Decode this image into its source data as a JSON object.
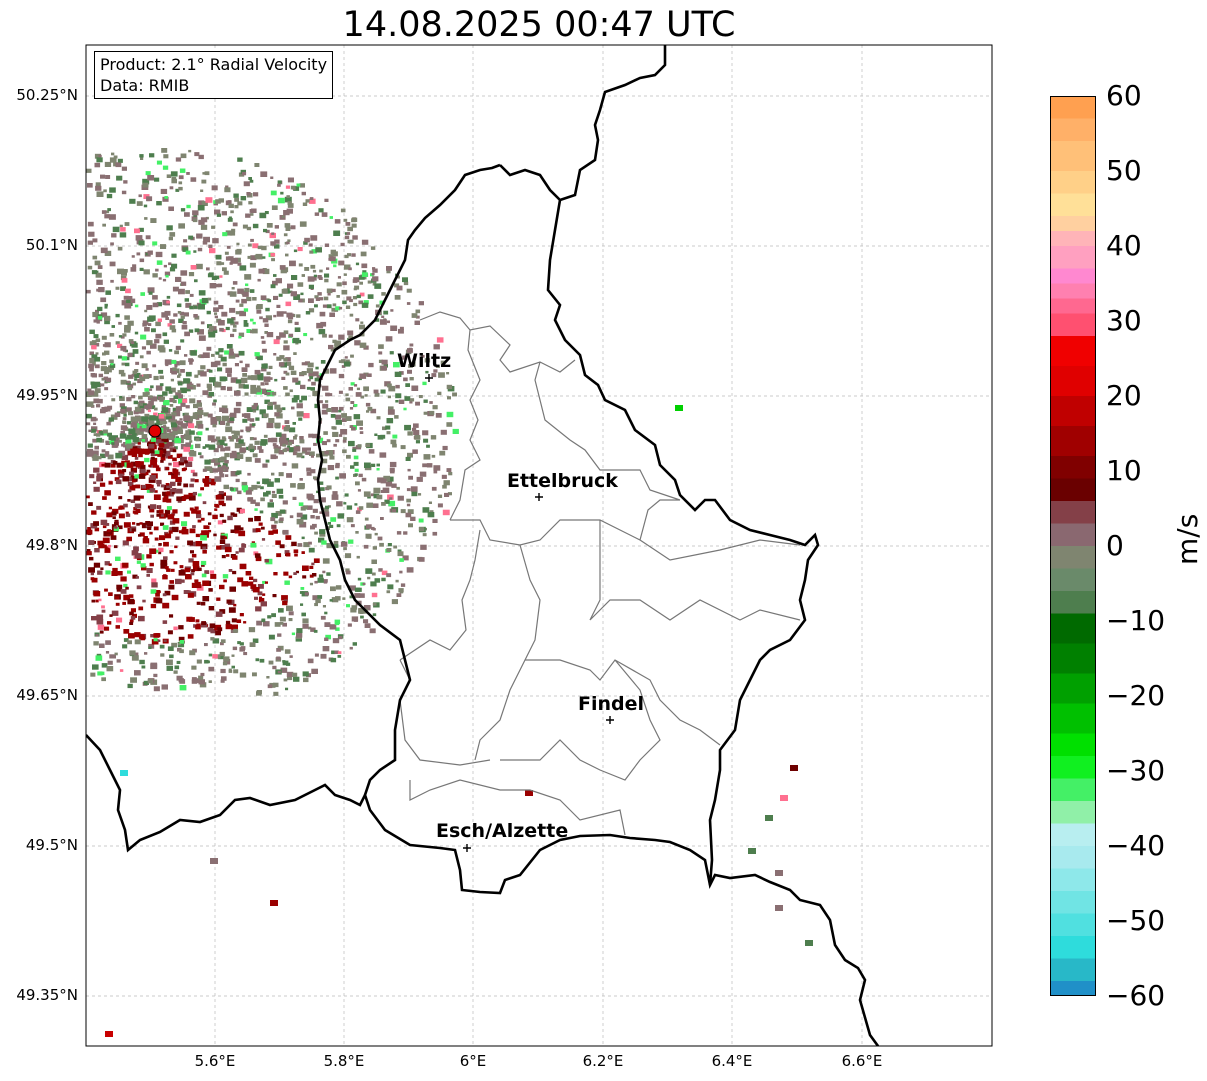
{
  "title": "14.08.2025 00:47 UTC",
  "info": {
    "product": "Product: 2.1° Radial Velocity",
    "data": "Data: RMIB"
  },
  "lat_labels": [
    "50.25°N",
    "50.1°N",
    "49.95°N",
    "49.8°N",
    "49.65°N",
    "49.5°N",
    "49.35°N"
  ],
  "lon_labels": [
    "5.6°E",
    "5.8°E",
    "6°E",
    "6.2°E",
    "6.4°E",
    "6.6°E"
  ],
  "cities": [
    {
      "name": "Wiltz"
    },
    {
      "name": "Ettelbruck"
    },
    {
      "name": "Findel"
    },
    {
      "name": "Esch/Alzette"
    }
  ],
  "colorbar": {
    "unit": "m/s",
    "min": -60,
    "max": 60,
    "tick_labels": [
      "60",
      "50",
      "40",
      "30",
      "20",
      "10",
      "0",
      "−10",
      "−20",
      "−30",
      "−40",
      "−50",
      "−60"
    ],
    "colors": {
      "-60": "#1f77b4",
      "-55": "#28b8c8",
      "-50": "#2edcdc",
      "-45": "#5ee4e4",
      "-40": "#8ee8ea",
      "-35": "#b8eef0",
      "-32": "#90f0a8",
      "-28": "#44f066",
      "-25": "#10f020",
      "-20": "#00d000",
      "-15": "#00b000",
      "-10": "#006a00",
      "-5": "#4e7e4e",
      "0": "#7f8570",
      "3": "#8a6f72",
      "7": "#844048",
      "10": "#6e0000",
      "15": "#9a0000",
      "20": "#c80000",
      "25": "#f00000",
      "30": "#ff5060",
      "35": "#ff7090",
      "40": "#ff90c8",
      "45": "#ffb0b4",
      "50": "#ffe090",
      "55": "#ffc070",
      "60": "#ffa050"
    }
  }
}
